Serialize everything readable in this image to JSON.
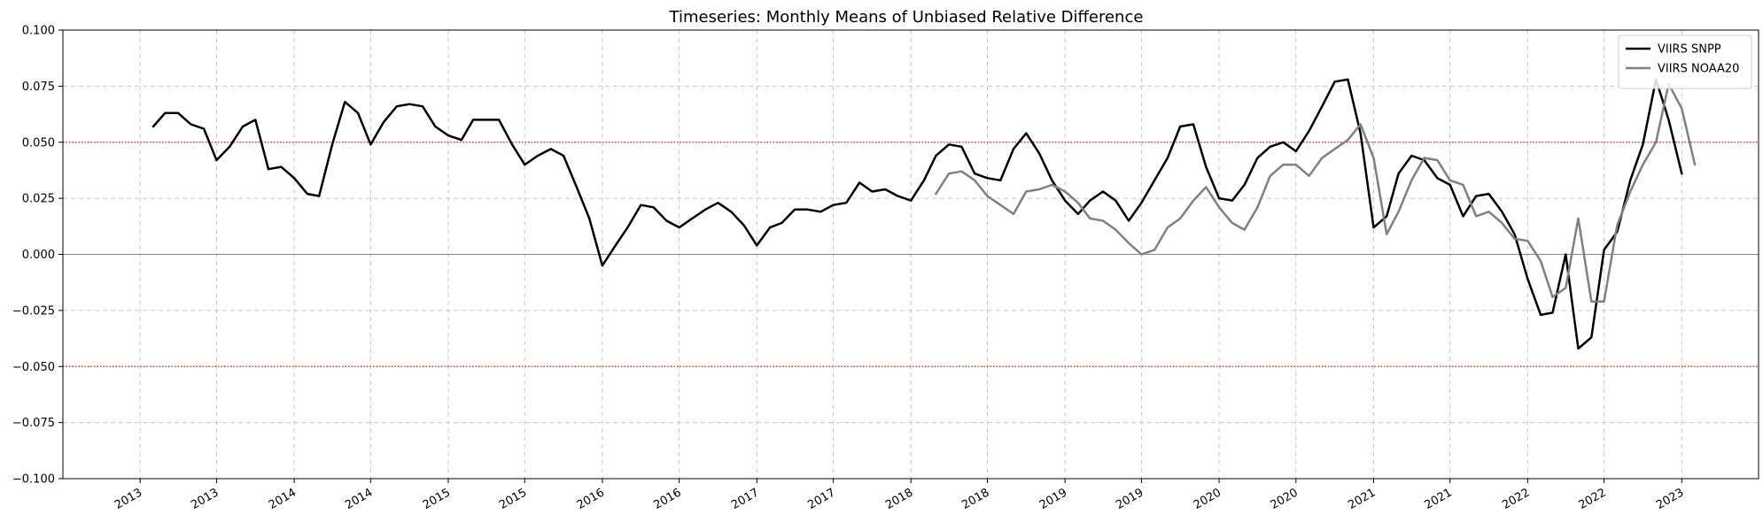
{
  "chart_data": {
    "type": "line",
    "title": "Timeseries: Monthly Means of Unbiased Relative Difference",
    "xlabel": "",
    "ylabel": "",
    "ylim": [
      -0.1,
      0.1
    ],
    "xlim": [
      "2012-07-01",
      "2023-07-01"
    ],
    "y_ticks": [
      -0.1,
      -0.075,
      -0.05,
      -0.025,
      0.0,
      0.025,
      0.05,
      0.075,
      0.1
    ],
    "y_tick_labels": [
      "−0.100",
      "−0.075",
      "−0.050",
      "−0.025",
      "0.000",
      "0.025",
      "0.050",
      "0.075",
      "0.100"
    ],
    "x_ticks": [
      "2012-12-31",
      "2013-06-30",
      "2013-12-31",
      "2014-06-30",
      "2014-12-31",
      "2015-06-30",
      "2015-12-31",
      "2016-06-30",
      "2016-12-31",
      "2017-06-30",
      "2017-12-31",
      "2018-06-30",
      "2018-12-31",
      "2019-06-30",
      "2019-12-31",
      "2020-06-30",
      "2020-12-31",
      "2021-06-30",
      "2021-12-31",
      "2022-06-30",
      "2022-12-31"
    ],
    "x_tick_labels": [
      "2013",
      "2013",
      "2014",
      "2014",
      "2015",
      "2015",
      "2016",
      "2016",
      "2017",
      "2017",
      "2018",
      "2018",
      "2019",
      "2019",
      "2020",
      "2020",
      "2021",
      "2021",
      "2022",
      "2022",
      "2023"
    ],
    "grid": true,
    "legend_position": "top-right",
    "reference_lines": [
      {
        "y": 0.05,
        "color": "#d62728",
        "style": "dotted"
      },
      {
        "y": -0.05,
        "color": "#d62728",
        "style": "dotted"
      },
      {
        "y": 0.0,
        "color": "#888888",
        "style": "solid"
      }
    ],
    "series": [
      {
        "name": "VIIRS SNPP",
        "color": "#000000",
        "start": "2013-01",
        "values": [
          0.057,
          0.063,
          0.063,
          0.058,
          0.056,
          0.042,
          0.048,
          0.057,
          0.06,
          0.038,
          0.039,
          0.034,
          0.027,
          0.026,
          0.049,
          0.068,
          0.063,
          0.049,
          0.059,
          0.066,
          0.067,
          0.066,
          0.057,
          0.053,
          0.051,
          0.06,
          0.06,
          0.06,
          0.049,
          0.04,
          0.044,
          0.047,
          0.044,
          0.03,
          0.016,
          -0.005,
          0.004,
          0.012,
          0.022,
          0.021,
          0.015,
          0.012,
          0.016,
          0.02,
          0.023,
          0.019,
          0.013,
          0.004,
          0.012,
          0.014,
          0.02,
          0.02,
          0.019,
          0.022,
          0.023,
          0.032,
          0.028,
          0.029,
          0.026,
          0.024,
          0.033,
          0.044,
          0.049,
          0.048,
          0.036,
          0.034,
          0.033,
          0.047,
          0.054,
          0.045,
          0.033,
          0.024,
          0.018,
          0.024,
          0.028,
          0.024,
          0.015,
          0.023,
          0.033,
          0.043,
          0.057,
          0.058,
          0.039,
          0.025,
          0.024,
          0.031,
          0.043,
          0.048,
          0.05,
          0.046,
          0.055,
          0.066,
          0.077,
          0.078,
          0.054,
          0.012,
          0.017,
          0.036,
          0.044,
          0.042,
          0.034,
          0.031,
          0.017,
          0.026,
          0.027,
          0.019,
          0.009,
          -0.011,
          -0.027,
          -0.026,
          0.0,
          -0.042,
          -0.037,
          0.002,
          0.01,
          0.033,
          0.049,
          0.078,
          0.06,
          0.036
        ]
      },
      {
        "name": "VIIRS NOAA20",
        "color": "#808080",
        "start": "2018-02",
        "values": [
          0.027,
          0.036,
          0.037,
          0.033,
          0.026,
          0.022,
          0.018,
          0.028,
          0.029,
          0.031,
          0.028,
          0.023,
          0.016,
          0.015,
          0.011,
          0.005,
          0.0,
          0.002,
          0.012,
          0.016,
          0.024,
          0.03,
          0.021,
          0.014,
          0.011,
          0.021,
          0.035,
          0.04,
          0.04,
          0.035,
          0.043,
          0.047,
          0.051,
          0.058,
          0.043,
          0.009,
          0.019,
          0.033,
          0.043,
          0.042,
          0.033,
          0.031,
          0.017,
          0.019,
          0.014,
          0.007,
          0.006,
          -0.003,
          -0.019,
          -0.015,
          0.016,
          -0.021,
          -0.021,
          0.013,
          0.028,
          0.04,
          0.05,
          0.076,
          0.065,
          0.04
        ]
      }
    ]
  }
}
